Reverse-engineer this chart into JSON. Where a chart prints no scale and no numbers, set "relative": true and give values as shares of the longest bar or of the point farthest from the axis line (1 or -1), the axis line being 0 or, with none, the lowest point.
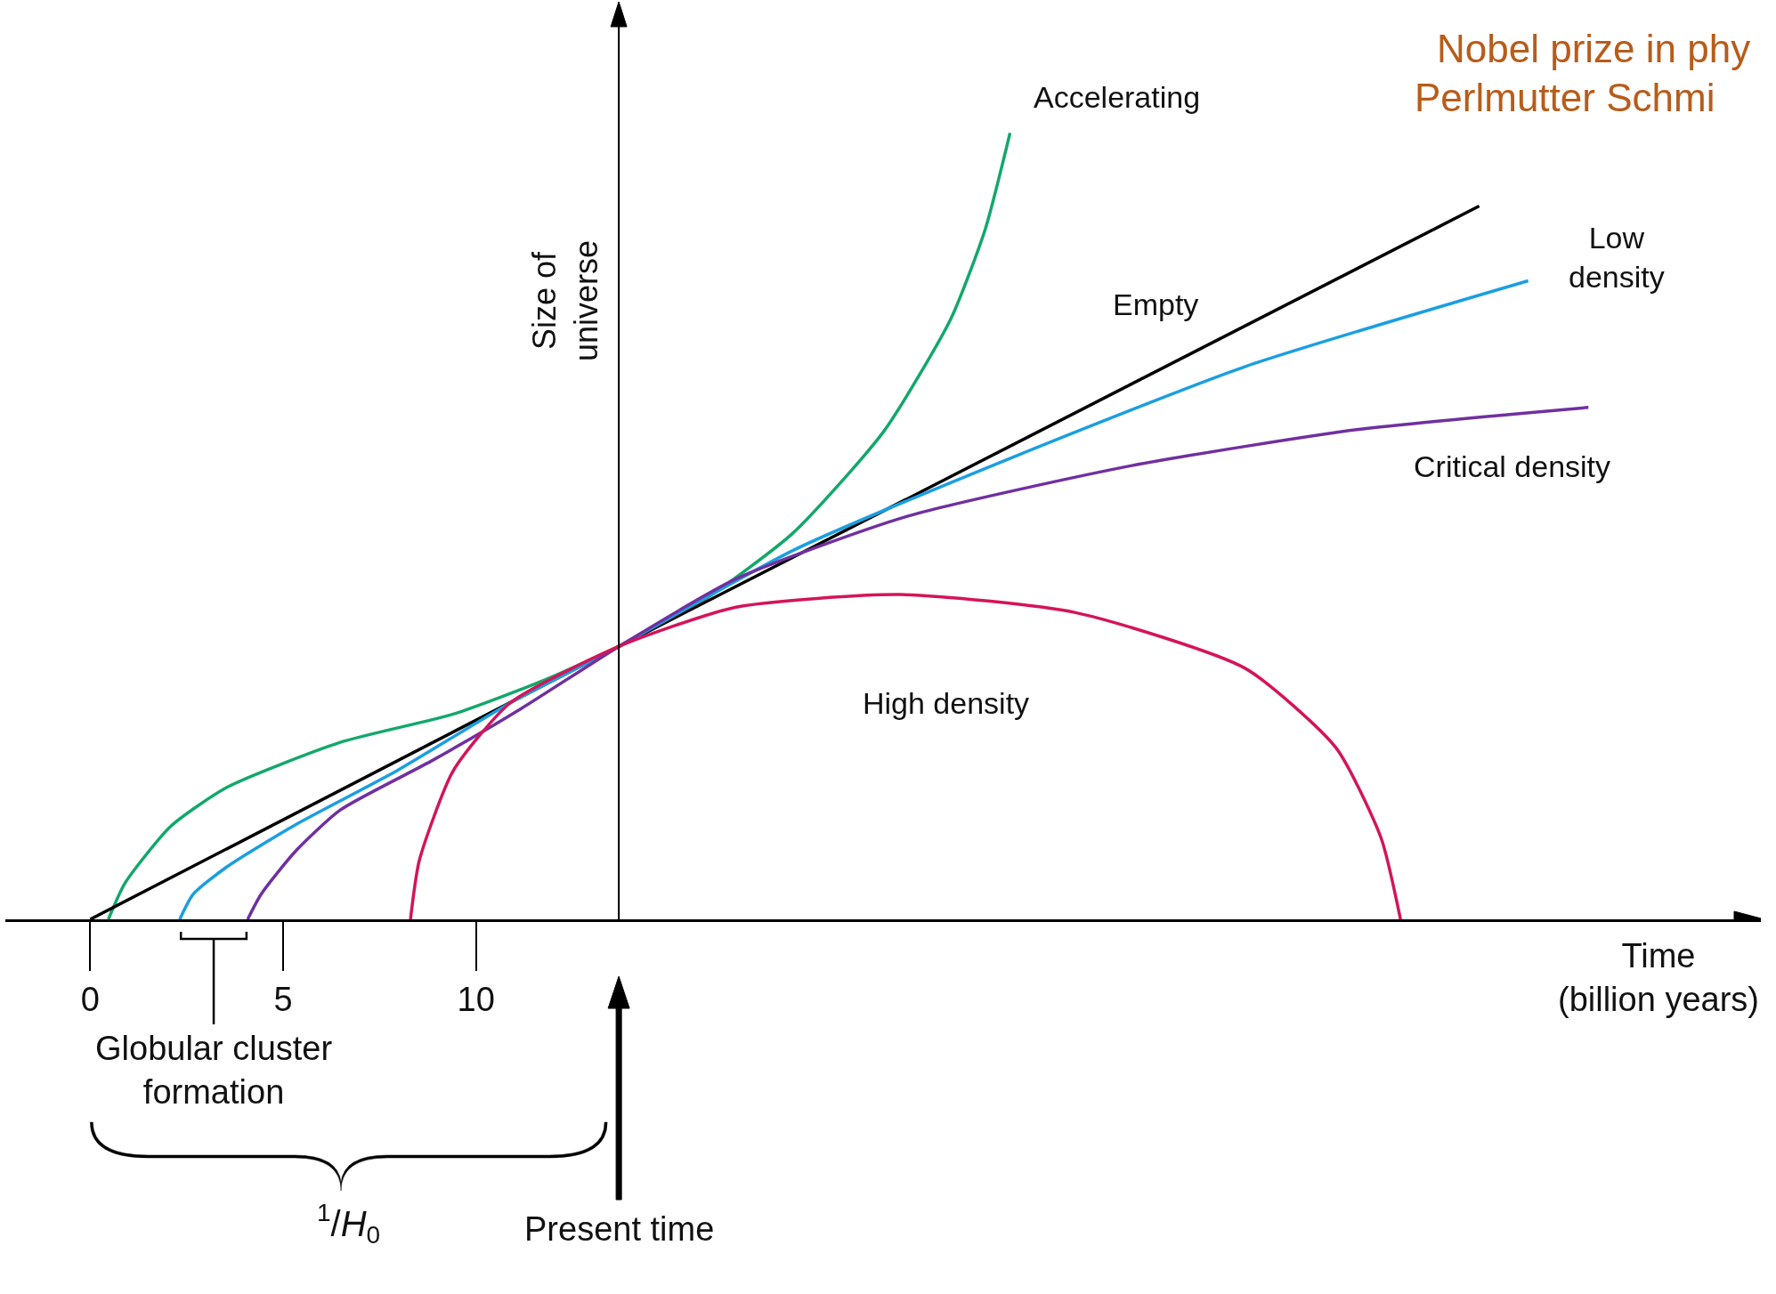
{
  "chart_data": {
    "type": "line",
    "relative": true,
    "xlabel": "Time\n(billion years)",
    "ylabel": "Size of\nuniverse",
    "xlim": [
      -2.2,
      43.3
    ],
    "xticks": [
      0,
      5,
      10
    ],
    "grid": false,
    "legend": false,
    "marker": "none",
    "line_style": "solid",
    "series": [
      {
        "name": "Accelerating",
        "color": "#12a86b",
        "x": [
          0.47,
          0.9,
          2.08,
          3.55,
          6.48,
          9.41,
          11.76,
          13.7,
          15.87,
          18.21,
          20.56,
          22.3,
          23.2,
          23.84
        ],
        "values": [
          0,
          0.046,
          0.118,
          0.168,
          0.225,
          0.261,
          0.304,
          0.347,
          0.405,
          0.491,
          0.62,
          0.763,
          0.878,
          1
        ]
      },
      {
        "name": "Empty",
        "color": "#000000",
        "x": [
          0,
          13.7,
          36
        ],
        "values": [
          0,
          0.347,
          0.907
        ]
      },
      {
        "name": "Low\ndensity",
        "color": "#1a9fe0",
        "x": [
          2.32,
          2.67,
          3.55,
          5.31,
          7.95,
          10.88,
          13.7,
          18.21,
          24.08,
          29.94,
          37.27
        ],
        "values": [
          0,
          0.032,
          0.067,
          0.12,
          0.189,
          0.275,
          0.347,
          0.469,
          0.591,
          0.703,
          0.812
        ]
      },
      {
        "name": "Critical density",
        "color": "#7030a0",
        "x": [
          4.08,
          4.43,
          5.31,
          6.48,
          8.83,
          11.17,
          13.7,
          16.74,
          21.14,
          27,
          32.87,
          38.83
        ],
        "values": [
          0,
          0.032,
          0.086,
          0.139,
          0.201,
          0.268,
          0.347,
          0.433,
          0.512,
          0.577,
          0.623,
          0.651
        ]
      },
      {
        "name": "High density",
        "color": "#d4145a",
        "x": [
          8.3,
          8.53,
          9.41,
          10.88,
          13.7,
          16.74,
          21,
          25.54,
          29.94,
          32.29,
          33.46,
          33.96
        ],
        "values": [
          0,
          0.075,
          0.189,
          0.275,
          0.347,
          0.397,
          0.413,
          0.39,
          0.319,
          0.218,
          0.103,
          0
        ]
      }
    ],
    "ref_lines": [
      {
        "axis": "x",
        "value": 13.7
      }
    ],
    "annotations": [
      "Globular cluster\nformation",
      "$^{1}$/H$_{0}$",
      "Present time",
      "Nobel prize in phy",
      "Perlmutter Schmi"
    ]
  }
}
